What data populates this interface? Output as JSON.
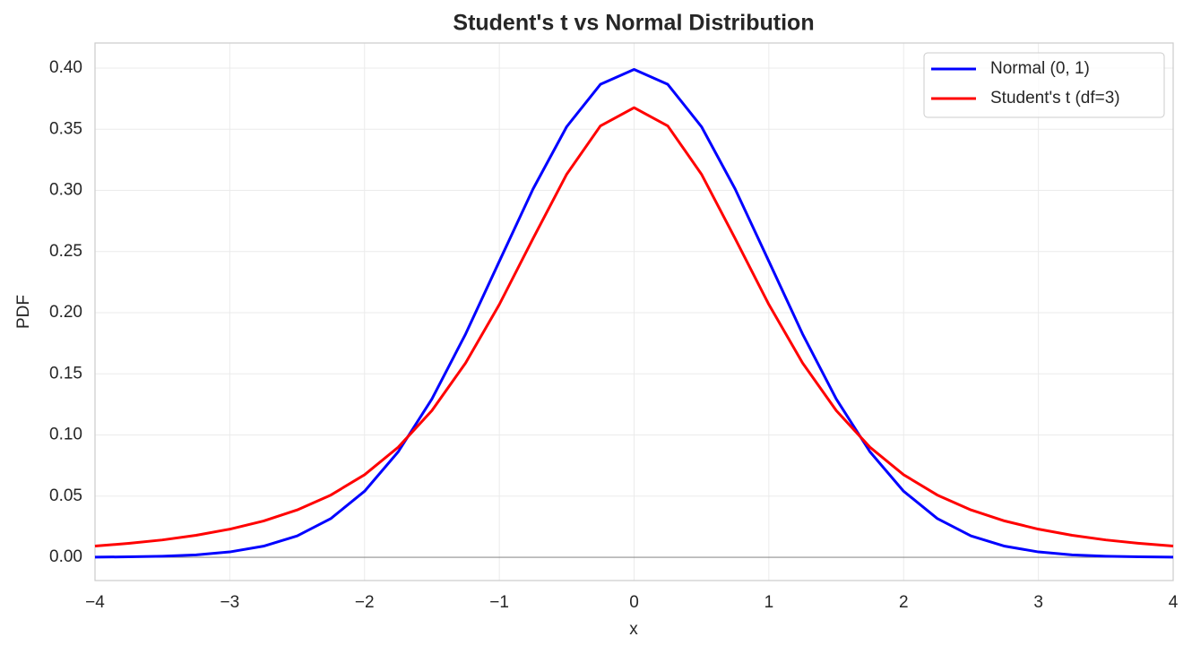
{
  "chart_data": {
    "type": "line",
    "title": "Student's t vs Normal Distribution",
    "xlabel": "x",
    "ylabel": "PDF",
    "x": [
      -4,
      -3.75,
      -3.5,
      -3.25,
      -3,
      -2.75,
      -2.5,
      -2.25,
      -2,
      -1.75,
      -1.5,
      -1.25,
      -1,
      -0.75,
      -0.5,
      -0.25,
      0,
      0.25,
      0.5,
      0.75,
      1,
      1.25,
      1.5,
      1.75,
      2,
      2.25,
      2.5,
      2.75,
      3,
      3.25,
      3.5,
      3.75,
      4
    ],
    "series": [
      {
        "name": "Normal (0, 1)",
        "color": "#0000ff",
        "values": [
          0.0001,
          0.0004,
          0.0009,
          0.002,
          0.0044,
          0.0091,
          0.0175,
          0.0317,
          0.054,
          0.0863,
          0.1295,
          0.1826,
          0.242,
          0.3011,
          0.3521,
          0.3867,
          0.3989,
          0.3867,
          0.3521,
          0.3011,
          0.242,
          0.1826,
          0.1295,
          0.0863,
          0.054,
          0.0317,
          0.0175,
          0.0091,
          0.0044,
          0.002,
          0.0009,
          0.0004,
          0.0001
        ]
      },
      {
        "name": "Student's t (df=3)",
        "color": "#ff0000",
        "values": [
          0.0092,
          0.0114,
          0.0142,
          0.018,
          0.023,
          0.0297,
          0.0387,
          0.0509,
          0.0675,
          0.09,
          0.12,
          0.1589,
          0.2067,
          0.2606,
          0.3132,
          0.3527,
          0.3676,
          0.3527,
          0.3132,
          0.2606,
          0.2067,
          0.1589,
          0.12,
          0.09,
          0.0675,
          0.0509,
          0.0387,
          0.0297,
          0.023,
          0.018,
          0.0142,
          0.0114,
          0.0092
        ]
      }
    ],
    "xlim": [
      -4,
      4
    ],
    "ylim": [
      -0.019,
      0.4205
    ],
    "xticks": [
      {
        "value": -4,
        "label": "−4"
      },
      {
        "value": -3,
        "label": "−3"
      },
      {
        "value": -2,
        "label": "−2"
      },
      {
        "value": -1,
        "label": "−1"
      },
      0,
      1,
      2,
      3,
      4
    ],
    "yticks": [
      {
        "value": 0,
        "label": "0.00"
      },
      {
        "value": 0.05,
        "label": "0.05"
      },
      {
        "value": 0.1,
        "label": "0.10"
      },
      {
        "value": 0.15,
        "label": "0.15"
      },
      {
        "value": 0.2,
        "label": "0.20"
      },
      {
        "value": 0.25,
        "label": "0.25"
      },
      {
        "value": 0.3,
        "label": "0.30"
      },
      {
        "value": 0.35,
        "label": "0.35"
      },
      {
        "value": 0.4,
        "label": "0.40"
      }
    ],
    "axhline": 0,
    "grid": true,
    "legend": "upper right"
  }
}
